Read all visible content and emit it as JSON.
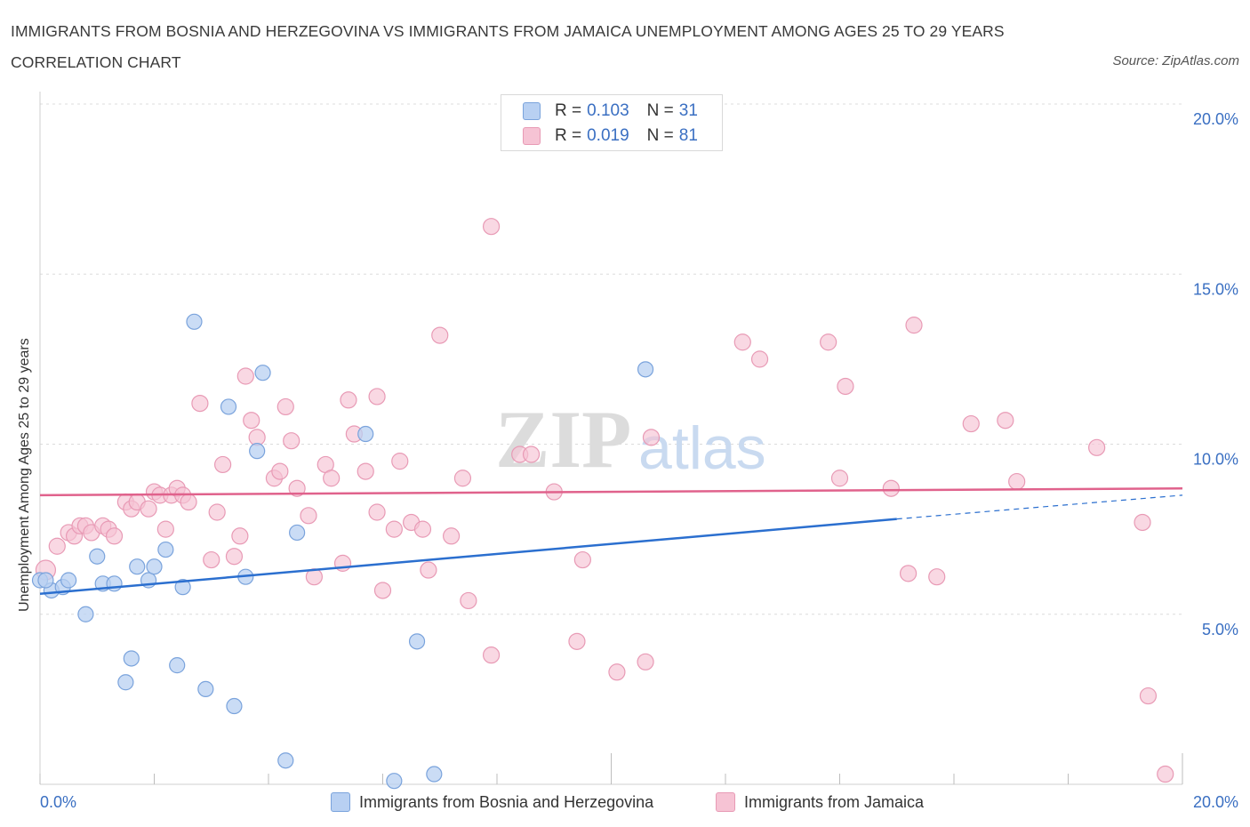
{
  "title": "IMMIGRANTS FROM BOSNIA AND HERZEGOVINA VS IMMIGRANTS FROM JAMAICA UNEMPLOYMENT AMONG AGES 25 TO 29 YEARS CORRELATION CHART",
  "source": "Source: ZipAtlas.com",
  "watermark": "ZIPatlas",
  "legend": {
    "rows": [
      {
        "r_label": "R = ",
        "r_value": "0.103",
        "n_label": "N = ",
        "n_value": "31"
      },
      {
        "r_label": "R = ",
        "r_value": "0.019",
        "n_label": "N = ",
        "n_value": "81"
      }
    ]
  },
  "bottom_legend": {
    "bosnia": "Immigrants from Bosnia and Herzegovina",
    "jamaica": "Immigrants from Jamaica"
  },
  "colors": {
    "bosnia_fill": "#b8d0f2",
    "bosnia_stroke": "#7aa3dc",
    "bosnia_line": "#2b6fcf",
    "jamaica_fill": "#f6c3d4",
    "jamaica_stroke": "#e89ab5",
    "jamaica_line": "#e0628c",
    "axis_text": "#3a6fc2",
    "grid": "#dcdcdc"
  },
  "chart_data": {
    "type": "scatter",
    "title": "IMMIGRANTS FROM BOSNIA AND HERZEGOVINA VS IMMIGRANTS FROM JAMAICA UNEMPLOYMENT AMONG AGES 25 TO 29 YEARS CORRELATION CHART",
    "xlabel": "",
    "ylabel": "Unemployment Among Ages 25 to 29 years",
    "xlim": [
      0,
      20
    ],
    "ylim": [
      0,
      20
    ],
    "x_tick_labels": [
      "0.0%",
      "20.0%"
    ],
    "y_ticks": [
      5,
      10,
      15,
      20
    ],
    "y_tick_labels": [
      "5.0%",
      "10.0%",
      "15.0%",
      "20.0%"
    ],
    "grid": true,
    "legend_position": "top-center",
    "series": [
      {
        "name": "Immigrants from Bosnia and Herzegovina",
        "color": "#b8d0f2",
        "R": 0.103,
        "N": 31,
        "points": [
          [
            0.0,
            6.0
          ],
          [
            0.2,
            5.7
          ],
          [
            0.4,
            5.8
          ],
          [
            0.5,
            6.0
          ],
          [
            0.8,
            5.0
          ],
          [
            1.0,
            6.7
          ],
          [
            1.1,
            5.9
          ],
          [
            1.3,
            5.9
          ],
          [
            1.5,
            3.0
          ],
          [
            1.6,
            3.7
          ],
          [
            1.7,
            6.4
          ],
          [
            1.9,
            6.0
          ],
          [
            2.0,
            6.4
          ],
          [
            2.2,
            6.9
          ],
          [
            2.4,
            3.5
          ],
          [
            2.5,
            5.8
          ],
          [
            2.7,
            13.6
          ],
          [
            2.9,
            2.8
          ],
          [
            3.3,
            11.1
          ],
          [
            3.4,
            2.3
          ],
          [
            3.6,
            6.1
          ],
          [
            3.8,
            9.8
          ],
          [
            3.9,
            12.1
          ],
          [
            4.3,
            0.7
          ],
          [
            4.5,
            7.4
          ],
          [
            5.7,
            10.3
          ],
          [
            6.2,
            0.1
          ],
          [
            6.6,
            4.2
          ],
          [
            6.9,
            0.3
          ],
          [
            10.6,
            12.2
          ],
          [
            0.1,
            6.0
          ]
        ],
        "trend": {
          "x": [
            0,
            15
          ],
          "y": [
            5.6,
            7.8
          ],
          "dashed_extension": {
            "x": [
              15,
              20
            ],
            "y": [
              7.8,
              8.5
            ]
          }
        }
      },
      {
        "name": "Immigrants from Jamaica",
        "color": "#f6c3d4",
        "R": 0.019,
        "N": 81,
        "points": [
          [
            0.1,
            6.3
          ],
          [
            0.3,
            7.0
          ],
          [
            0.5,
            7.4
          ],
          [
            0.6,
            7.3
          ],
          [
            0.7,
            7.6
          ],
          [
            0.8,
            7.6
          ],
          [
            0.9,
            7.4
          ],
          [
            1.1,
            7.6
          ],
          [
            1.2,
            7.5
          ],
          [
            1.3,
            7.3
          ],
          [
            1.5,
            8.3
          ],
          [
            1.6,
            8.1
          ],
          [
            1.7,
            8.3
          ],
          [
            1.9,
            8.1
          ],
          [
            2.0,
            8.6
          ],
          [
            2.1,
            8.5
          ],
          [
            2.2,
            7.5
          ],
          [
            2.3,
            8.5
          ],
          [
            2.4,
            8.7
          ],
          [
            2.5,
            8.5
          ],
          [
            2.6,
            8.3
          ],
          [
            2.8,
            11.2
          ],
          [
            3.0,
            6.6
          ],
          [
            3.1,
            8.0
          ],
          [
            3.2,
            9.4
          ],
          [
            3.4,
            6.7
          ],
          [
            3.5,
            7.3
          ],
          [
            3.6,
            12.0
          ],
          [
            3.7,
            10.7
          ],
          [
            3.8,
            10.2
          ],
          [
            4.1,
            9.0
          ],
          [
            4.2,
            9.2
          ],
          [
            4.3,
            11.1
          ],
          [
            4.4,
            10.1
          ],
          [
            4.5,
            8.7
          ],
          [
            4.7,
            7.9
          ],
          [
            4.8,
            6.1
          ],
          [
            5.0,
            9.4
          ],
          [
            5.1,
            9.0
          ],
          [
            5.3,
            6.5
          ],
          [
            5.4,
            11.3
          ],
          [
            5.5,
            10.3
          ],
          [
            5.7,
            9.2
          ],
          [
            5.9,
            11.4
          ],
          [
            5.9,
            8.0
          ],
          [
            6.0,
            5.7
          ],
          [
            6.2,
            7.5
          ],
          [
            6.3,
            9.5
          ],
          [
            6.5,
            7.7
          ],
          [
            6.7,
            7.5
          ],
          [
            6.8,
            6.3
          ],
          [
            7.0,
            13.2
          ],
          [
            7.2,
            7.3
          ],
          [
            7.4,
            9.0
          ],
          [
            7.5,
            5.4
          ],
          [
            7.9,
            3.8
          ],
          [
            7.9,
            16.4
          ],
          [
            8.4,
            9.7
          ],
          [
            8.6,
            9.7
          ],
          [
            9.0,
            8.6
          ],
          [
            9.4,
            4.2
          ],
          [
            9.5,
            6.6
          ],
          [
            10.1,
            3.3
          ],
          [
            10.6,
            3.6
          ],
          [
            10.7,
            10.2
          ],
          [
            12.3,
            13.0
          ],
          [
            12.6,
            12.5
          ],
          [
            13.8,
            13.0
          ],
          [
            14.0,
            9.0
          ],
          [
            14.1,
            11.7
          ],
          [
            14.9,
            8.7
          ],
          [
            15.2,
            6.2
          ],
          [
            15.3,
            13.5
          ],
          [
            15.7,
            6.1
          ],
          [
            16.3,
            10.6
          ],
          [
            16.9,
            10.7
          ],
          [
            17.1,
            8.9
          ],
          [
            18.5,
            9.9
          ],
          [
            19.3,
            7.7
          ],
          [
            19.4,
            2.6
          ],
          [
            19.7,
            0.3
          ]
        ],
        "trend": {
          "x": [
            0,
            20
          ],
          "y": [
            8.5,
            8.7
          ]
        }
      }
    ]
  }
}
